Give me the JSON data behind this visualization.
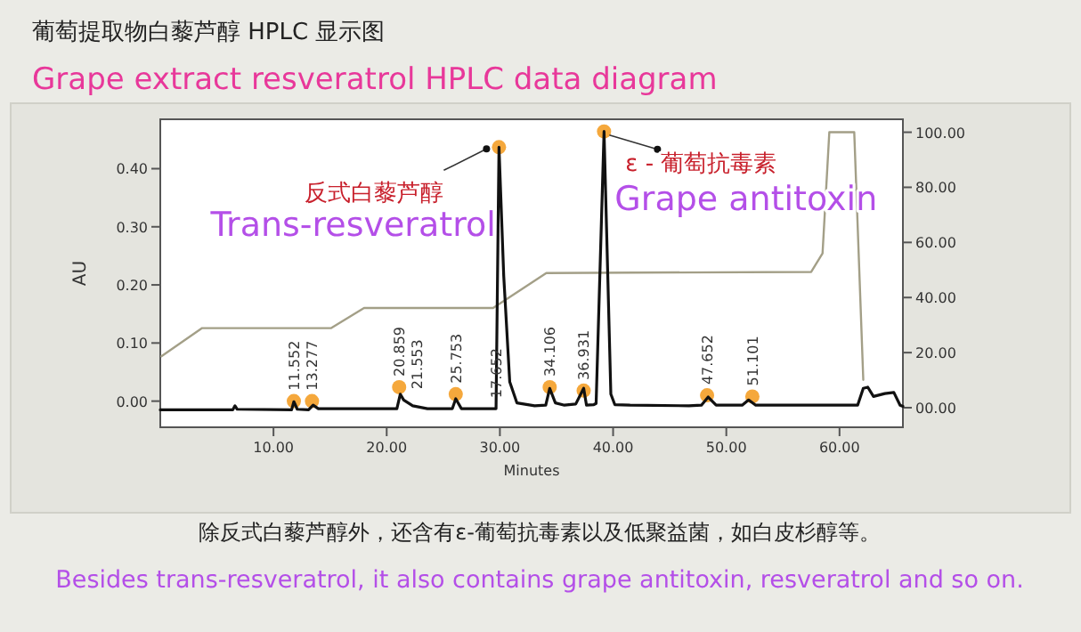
{
  "chart_data": {
    "type": "line",
    "title": "葡萄提取物白藜芦醇 HPLC 显示图",
    "subtitle": "Grape extract resveratrol HPLC data diagram",
    "xlabel": "Minutes",
    "ylabel": "AU",
    "xlim": [
      0,
      65.6
    ],
    "ylim": [
      -0.045,
      0.485
    ],
    "y2lim": [
      -7.1,
      104.7
    ],
    "xticks": [
      {
        "value": 10,
        "label": "10.00"
      },
      {
        "value": 20,
        "label": "20.00"
      },
      {
        "value": 30,
        "label": "30.00"
      },
      {
        "value": 40,
        "label": "40.00"
      },
      {
        "value": 50,
        "label": "50.00"
      },
      {
        "value": 60,
        "label": "60.00"
      }
    ],
    "yticks": [
      {
        "value": 0,
        "label": "0.00"
      },
      {
        "value": 0.1,
        "label": "0.10"
      },
      {
        "value": 0.2,
        "label": "0.20"
      },
      {
        "value": 0.3,
        "label": "0.30"
      },
      {
        "value": 0.4,
        "label": "0.40"
      }
    ],
    "y2ticks": [
      {
        "value": 0,
        "label": "00.00"
      },
      {
        "value": 20,
        "label": "20.00"
      },
      {
        "value": 40,
        "label": "40.00"
      },
      {
        "value": 60,
        "label": "60.00"
      },
      {
        "value": 80,
        "label": "80.00"
      },
      {
        "value": 100,
        "label": "100.00"
      }
    ],
    "grid": false,
    "series": [
      {
        "type": "line",
        "color": "#a39f87",
        "axis": "y2",
        "x": [
          0.1,
          3.7,
          15.1,
          18.0,
          29.4,
          34.1,
          57.5,
          58.5,
          59.1,
          61.3,
          62.1
        ],
        "values": [
          18.7,
          28.9,
          28.9,
          36.2,
          36.2,
          48.9,
          49.3,
          56,
          100,
          100,
          10.1
        ]
      },
      {
        "type": "line",
        "color": "#111111",
        "x": [
          0,
          6.4,
          6.6,
          6.8,
          11.6,
          11.8,
          12.1,
          13.1,
          13.5,
          13.96,
          20.9,
          21.2,
          21.5,
          22.3,
          23.6,
          25.8,
          26.1,
          26.6,
          29.4,
          29.66,
          29.92,
          30.34,
          30.87,
          31.5,
          33.07,
          34.05,
          34.4,
          34.9,
          35.7,
          36.7,
          37.4,
          37.65,
          38.3,
          38.5,
          39.2,
          39.8,
          40.15,
          41.5,
          46.7,
          47.8,
          48.4,
          49.1,
          51.4,
          51.97,
          52.6,
          61.6,
          62.1,
          62.5,
          63.0,
          64.0,
          64.8,
          65.35,
          65.6
        ],
        "values": [
          -0.015,
          -0.015,
          -0.008,
          -0.014,
          -0.015,
          -0.001,
          -0.014,
          -0.015,
          -0.007,
          -0.013,
          -0.013,
          0.012,
          0.002,
          -0.008,
          -0.013,
          -0.013,
          0.004,
          -0.013,
          -0.013,
          -0.013,
          0.437,
          0.215,
          0.033,
          -0.003,
          -0.008,
          -0.007,
          0.022,
          -0.003,
          -0.007,
          -0.005,
          0.022,
          -0.007,
          -0.006,
          -0.004,
          0.464,
          0.012,
          -0.006,
          -0.007,
          -0.008,
          -0.007,
          0.007,
          -0.007,
          -0.007,
          0.002,
          -0.007,
          -0.007,
          0.022,
          0.024,
          0.008,
          0.013,
          0.015,
          -0.007,
          -0.009
        ]
      },
      {
        "type": "scatter",
        "color": "#f5a83c",
        "marker": "circle",
        "x": [
          11.8,
          13.4,
          21.1,
          26.1,
          29.92,
          34.4,
          37.4,
          39.2,
          48.3,
          52.3
        ],
        "values": [
          0.0,
          0.0,
          0.024,
          0.012,
          0.437,
          0.024,
          0.018,
          0.464,
          0.01,
          0.008
        ]
      }
    ],
    "annotations": [
      {
        "text": "11.552",
        "x": 11.8,
        "y": 0.0
      },
      {
        "text": "13.277",
        "x": 13.4,
        "y": 0.0
      },
      {
        "text": "20.859",
        "x": 21.1,
        "y": 0.024
      },
      {
        "text": "21.553",
        "x": 21.5,
        "y": 0.002
      },
      {
        "text": "25.753",
        "x": 26.1,
        "y": 0.012
      },
      {
        "text": "17.652",
        "x": 29.66,
        "y": -0.013
      },
      {
        "text": "34.106",
        "x": 34.4,
        "y": 0.024
      },
      {
        "text": "36.931",
        "x": 37.4,
        "y": 0.018
      },
      {
        "text": "47.652",
        "x": 48.3,
        "y": 0.01
      },
      {
        "text": "51.101",
        "x": 52.3,
        "y": 0.008
      },
      {
        "text": "反式白藜芦醇",
        "x": 29.92,
        "y": 0.437
      },
      {
        "text": "Trans-resveratrol",
        "x": 29.92,
        "y": 0.437
      },
      {
        "text": "ε - 葡萄抗毒素",
        "x": 39.2,
        "y": 0.464
      },
      {
        "text": "Grape antitoxin",
        "x": 39.2,
        "y": 0.464
      },
      "除反式白藜芦醇外，还含有ε-葡萄抗毒素以及低聚益菌，如白皮杉醇等。",
      "Besides trans-resveratrol, it also contains grape antitoxin, resveratrol and so on."
    ]
  }
}
